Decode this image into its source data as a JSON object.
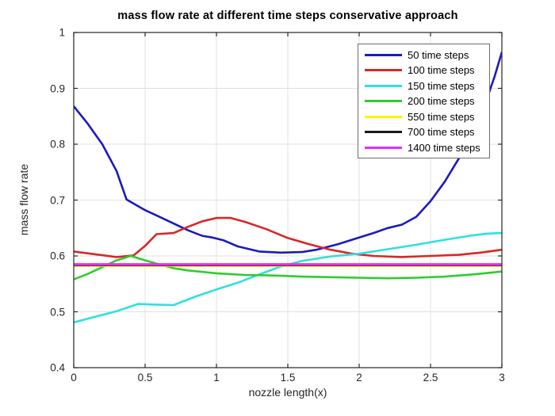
{
  "chart_data": {
    "type": "line",
    "title": "mass flow rate at different time steps conservative approach",
    "xlabel": "nozzle length(x)",
    "ylabel": "mass flow rate",
    "xlim": [
      0,
      3
    ],
    "ylim": [
      0.4,
      1.0
    ],
    "xticks": [
      0,
      0.5,
      1,
      1.5,
      2,
      2.5,
      3
    ],
    "xtick_labels": [
      "0",
      "0.5",
      "1",
      "1.5",
      "2",
      "2.5",
      "3"
    ],
    "yticks": [
      0.4,
      0.5,
      0.6,
      0.7,
      0.8,
      0.9,
      1.0
    ],
    "ytick_labels": [
      "0.4",
      "0.5",
      "0.6",
      "0.7",
      "0.8",
      "0.9",
      "1"
    ],
    "grid": true,
    "grid_color": "#e0e0e0",
    "axis_color": "#262626",
    "legend_position": "top-right",
    "series": [
      {
        "name": "50 time steps",
        "color": "#1b1bbd",
        "width": 2.6,
        "points": [
          [
            0,
            0.868
          ],
          [
            0.1,
            0.836
          ],
          [
            0.2,
            0.8
          ],
          [
            0.3,
            0.752
          ],
          [
            0.37,
            0.701
          ],
          [
            0.5,
            0.682
          ],
          [
            0.6,
            0.67
          ],
          [
            0.7,
            0.658
          ],
          [
            0.8,
            0.646
          ],
          [
            0.9,
            0.636
          ],
          [
            0.97,
            0.633
          ],
          [
            1.05,
            0.628
          ],
          [
            1.15,
            0.617
          ],
          [
            1.3,
            0.608
          ],
          [
            1.45,
            0.606
          ],
          [
            1.6,
            0.607
          ],
          [
            1.7,
            0.611
          ],
          [
            1.85,
            0.621
          ],
          [
            2.0,
            0.633
          ],
          [
            2.1,
            0.641
          ],
          [
            2.2,
            0.65
          ],
          [
            2.3,
            0.656
          ],
          [
            2.4,
            0.67
          ],
          [
            2.5,
            0.698
          ],
          [
            2.6,
            0.733
          ],
          [
            2.7,
            0.775
          ],
          [
            2.8,
            0.825
          ],
          [
            2.9,
            0.885
          ],
          [
            2.95,
            0.922
          ],
          [
            3.0,
            0.965
          ]
        ]
      },
      {
        "name": "100 time steps",
        "color": "#d62828",
        "width": 2.6,
        "points": [
          [
            0,
            0.608
          ],
          [
            0.15,
            0.603
          ],
          [
            0.3,
            0.598
          ],
          [
            0.42,
            0.601
          ],
          [
            0.5,
            0.618
          ],
          [
            0.58,
            0.639
          ],
          [
            0.7,
            0.641
          ],
          [
            0.8,
            0.652
          ],
          [
            0.9,
            0.662
          ],
          [
            1.0,
            0.668
          ],
          [
            1.1,
            0.668
          ],
          [
            1.2,
            0.661
          ],
          [
            1.35,
            0.648
          ],
          [
            1.5,
            0.632
          ],
          [
            1.65,
            0.621
          ],
          [
            1.8,
            0.611
          ],
          [
            1.95,
            0.604
          ],
          [
            2.1,
            0.6
          ],
          [
            2.3,
            0.598
          ],
          [
            2.5,
            0.6
          ],
          [
            2.7,
            0.602
          ],
          [
            2.85,
            0.606
          ],
          [
            3.0,
            0.611
          ]
        ]
      },
      {
        "name": "150 time steps",
        "color": "#2fe0e0",
        "width": 2.6,
        "points": [
          [
            0,
            0.481
          ],
          [
            0.15,
            0.491
          ],
          [
            0.3,
            0.501
          ],
          [
            0.45,
            0.514
          ],
          [
            0.55,
            0.513
          ],
          [
            0.7,
            0.512
          ],
          [
            0.85,
            0.527
          ],
          [
            1.0,
            0.54
          ],
          [
            1.15,
            0.552
          ],
          [
            1.3,
            0.567
          ],
          [
            1.45,
            0.581
          ],
          [
            1.6,
            0.591
          ],
          [
            1.8,
            0.599
          ],
          [
            2.0,
            0.604
          ],
          [
            2.2,
            0.612
          ],
          [
            2.4,
            0.62
          ],
          [
            2.6,
            0.629
          ],
          [
            2.8,
            0.637
          ],
          [
            2.9,
            0.64
          ],
          [
            3.0,
            0.641
          ]
        ]
      },
      {
        "name": "200 time steps",
        "color": "#2ecc2e",
        "width": 2.6,
        "points": [
          [
            0,
            0.558
          ],
          [
            0.1,
            0.568
          ],
          [
            0.2,
            0.58
          ],
          [
            0.3,
            0.592
          ],
          [
            0.4,
            0.6
          ],
          [
            0.5,
            0.592
          ],
          [
            0.6,
            0.585
          ],
          [
            0.7,
            0.578
          ],
          [
            0.8,
            0.574
          ],
          [
            1.0,
            0.569
          ],
          [
            1.2,
            0.566
          ],
          [
            1.4,
            0.565
          ],
          [
            1.6,
            0.563
          ],
          [
            1.8,
            0.562
          ],
          [
            2.0,
            0.561
          ],
          [
            2.2,
            0.56
          ],
          [
            2.4,
            0.561
          ],
          [
            2.6,
            0.563
          ],
          [
            2.8,
            0.567
          ],
          [
            3.0,
            0.572
          ]
        ]
      },
      {
        "name": "550 time steps",
        "color": "#f8f800",
        "width": 2.6,
        "points": [
          [
            0,
            0.5822
          ],
          [
            3,
            0.5822
          ]
        ]
      },
      {
        "name": "700 time steps",
        "color": "#1a1a1a",
        "width": 2.6,
        "points": [
          [
            0,
            0.5836
          ],
          [
            3,
            0.5836
          ]
        ]
      },
      {
        "name": "1400 time steps",
        "color": "#e82ee8",
        "width": 3.0,
        "points": [
          [
            0,
            0.585
          ],
          [
            3,
            0.585
          ]
        ]
      }
    ]
  }
}
